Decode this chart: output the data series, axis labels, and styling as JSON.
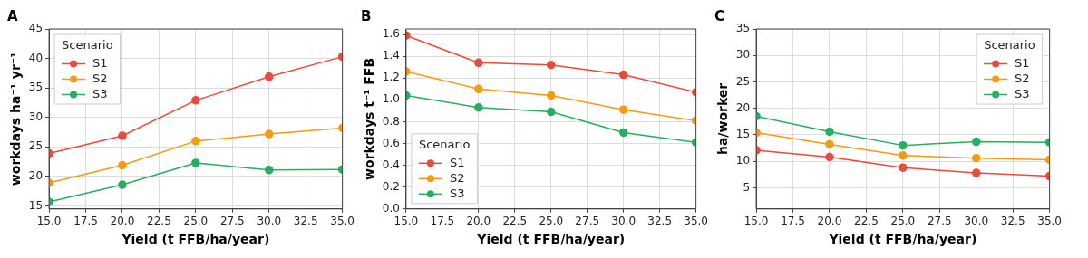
{
  "chart_data": [
    {
      "type": "line",
      "title": "A",
      "xlabel": "Yield (t FFB/ha/year)",
      "ylabel": "workdays ha⁻¹ yr⁻¹",
      "legend_title": "Scenario",
      "x": [
        15,
        20,
        25,
        30,
        35
      ],
      "series": [
        {
          "name": "S1",
          "color": "#e74c3c",
          "values": [
            23.9,
            26.9,
            32.9,
            36.9,
            40.3
          ]
        },
        {
          "name": "S2",
          "color": "#f39c12",
          "values": [
            18.9,
            21.9,
            26.0,
            27.2,
            28.2
          ]
        },
        {
          "name": "S3",
          "color": "#27ae60",
          "values": [
            15.7,
            18.6,
            22.3,
            21.1,
            21.2
          ]
        }
      ],
      "xlim": [
        15,
        35
      ],
      "xticks": [
        {
          "value": 15,
          "label": "15.0"
        },
        {
          "value": 17.5,
          "label": "17.5"
        },
        {
          "value": 20,
          "label": "20.0"
        },
        {
          "value": 22.5,
          "label": "22.5"
        },
        {
          "value": 25,
          "label": "25.0"
        },
        {
          "value": 27.5,
          "label": "27.5"
        },
        {
          "value": 30,
          "label": "30.0"
        },
        {
          "value": 32.5,
          "label": "32.5"
        },
        {
          "value": 35,
          "label": "35.0"
        }
      ],
      "ylim": [
        14.5,
        45
      ],
      "yticks": [
        15,
        20,
        25,
        30,
        35,
        40,
        45
      ],
      "grid": true,
      "legend": "top left",
      "marker": "circle",
      "line_style": "solid"
    },
    {
      "type": "line",
      "title": "B",
      "xlabel": "Yield (t FFB/ha/year)",
      "ylabel": "workdays t⁻¹ FFB",
      "legend_title": "Scenario",
      "x": [
        15,
        20,
        25,
        30,
        35
      ],
      "series": [
        {
          "name": "S1",
          "color": "#e74c3c",
          "values": [
            1.59,
            1.34,
            1.32,
            1.23,
            1.07
          ]
        },
        {
          "name": "S2",
          "color": "#f39c12",
          "values": [
            1.26,
            1.1,
            1.04,
            0.91,
            0.81
          ]
        },
        {
          "name": "S3",
          "color": "#27ae60",
          "values": [
            1.04,
            0.93,
            0.89,
            0.7,
            0.61
          ]
        }
      ],
      "xlim": [
        15,
        35
      ],
      "xticks": [
        {
          "value": 15,
          "label": "15.0"
        },
        {
          "value": 17.5,
          "label": "17.5"
        },
        {
          "value": 20,
          "label": "20.0"
        },
        {
          "value": 22.5,
          "label": "22.5"
        },
        {
          "value": 25,
          "label": "25.0"
        },
        {
          "value": 27.5,
          "label": "27.5"
        },
        {
          "value": 30,
          "label": "30.0"
        },
        {
          "value": 32.5,
          "label": "32.5"
        },
        {
          "value": 35,
          "label": "35.0"
        }
      ],
      "ylim": [
        0,
        1.65
      ],
      "yticks": [
        {
          "value": 0,
          "label": "0.0"
        },
        {
          "value": 0.2,
          "label": "0.2"
        },
        {
          "value": 0.4,
          "label": "0.4"
        },
        {
          "value": 0.6,
          "label": "0.6"
        },
        {
          "value": 0.8,
          "label": "0.8"
        },
        {
          "value": 1,
          "label": "1.0"
        },
        {
          "value": 1.2,
          "label": "1.2"
        },
        {
          "value": 1.4,
          "label": "1.4"
        },
        {
          "value": 1.6,
          "label": "1.6"
        }
      ],
      "grid": true,
      "legend": "bottom left",
      "marker": "circle",
      "line_style": "solid"
    },
    {
      "type": "line",
      "title": "C",
      "xlabel": "Yield (t FFB/ha/year)",
      "ylabel": "ha/worker",
      "legend_title": "Scenario",
      "x": [
        15,
        20,
        25,
        30,
        35
      ],
      "series": [
        {
          "name": "S1",
          "color": "#e74c3c",
          "values": [
            12.1,
            10.8,
            8.8,
            7.8,
            7.2
          ]
        },
        {
          "name": "S2",
          "color": "#f39c12",
          "values": [
            15.4,
            13.2,
            11.1,
            10.6,
            10.3
          ]
        },
        {
          "name": "S3",
          "color": "#27ae60",
          "values": [
            18.5,
            15.6,
            13.0,
            13.7,
            13.6
          ]
        }
      ],
      "xlim": [
        15,
        35
      ],
      "xticks": [
        {
          "value": 15,
          "label": "15.0"
        },
        {
          "value": 17.5,
          "label": "17.5"
        },
        {
          "value": 20,
          "label": "20.0"
        },
        {
          "value": 22.5,
          "label": "22.5"
        },
        {
          "value": 25,
          "label": "25.0"
        },
        {
          "value": 27.5,
          "label": "27.5"
        },
        {
          "value": 30,
          "label": "30.0"
        },
        {
          "value": 32.5,
          "label": "32.5"
        },
        {
          "value": 35,
          "label": "35.0"
        }
      ],
      "ylim": [
        1,
        35
      ],
      "yticks": [
        5,
        10,
        15,
        20,
        25,
        30,
        35
      ],
      "grid": true,
      "legend": "top right",
      "marker": "circle",
      "line_style": "solid"
    }
  ]
}
